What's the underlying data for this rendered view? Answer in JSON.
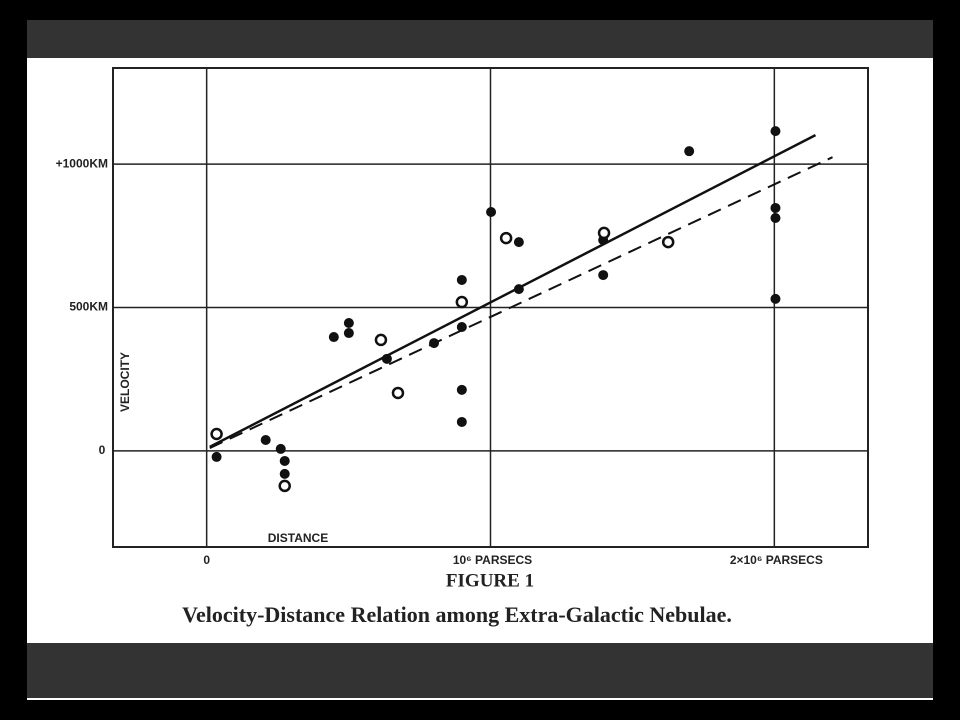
{
  "chart_data": {
    "type": "scatter",
    "title": "FIGURE 1",
    "subtitle": "Velocity-Distance Relation among Extra-Galactic Nebulae.",
    "x_label": "DISTANCE",
    "y_label": "VELOCITY",
    "xlim": [
      -330000,
      2330000
    ],
    "ylim": [
      -335,
      1335
    ],
    "xticks": [
      0,
      {
        "value": 1000000,
        "label": "10⁶ PARSECS"
      },
      {
        "value": 2000000,
        "label": "2×10⁶ PARSECS"
      }
    ],
    "yticks": [
      0,
      {
        "value": 500,
        "label": "500KM"
      },
      {
        "value": 1000,
        "label": "+1000KM"
      }
    ],
    "grid": true,
    "series": [
      {
        "marker": "filled",
        "color": "#111111",
        "x": [
          35000,
          208000,
          261000,
          275000,
          275000,
          448000,
          501000,
          501000,
          635000,
          801000,
          899000,
          899000,
          899000,
          899000,
          1002000,
          1100000,
          1100000,
          1397000,
          1397000,
          1700000,
          2004000,
          2004000,
          2004000,
          2004000
        ],
        "values": [
          -21,
          38,
          7,
          -35,
          -80,
          397,
          446,
          411,
          321,
          376,
          596,
          432,
          213,
          101,
          833,
          728,
          564,
          613,
          735,
          1045,
          1115,
          847,
          812,
          530
        ]
      },
      {
        "marker": "open",
        "color": "#111111",
        "x": [
          35000,
          275000,
          614000,
          674000,
          899000,
          1055000,
          1400000,
          1626000
        ],
        "values": [
          59,
          -122,
          387,
          202,
          519,
          742,
          760,
          728
        ]
      },
      {
        "line": "solid",
        "color": "#111111",
        "x": [
          11000,
          2145000
        ],
        "values": [
          14,
          1101
        ]
      },
      {
        "line": "dashed",
        "color": "#111111",
        "x": [
          11000,
          2205000
        ],
        "values": [
          10,
          1024
        ]
      }
    ]
  }
}
